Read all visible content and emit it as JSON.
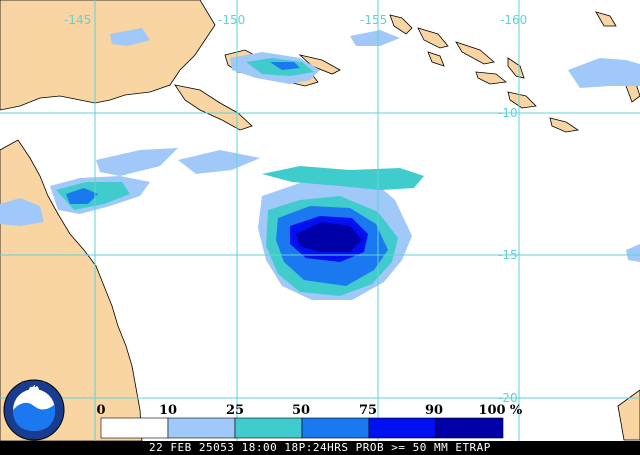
{
  "map": {
    "lon_labels": [
      "-145",
      "-150",
      "-155",
      "-160"
    ],
    "lat_labels": [
      "-10",
      "-15",
      "-20"
    ],
    "colors": {
      "land": "#f8d5a3",
      "ocean": "#ffffff",
      "grid": "#5fd3d3",
      "coast": "#000000"
    }
  },
  "legend": {
    "ticks": [
      "0",
      "10",
      "25",
      "50",
      "75",
      "90",
      "100"
    ],
    "unit": "%",
    "colors": [
      "#ffffff",
      "#a0c8f8",
      "#40cccc",
      "#1a78f0",
      "#0010f0",
      "#0000a8"
    ]
  },
  "logo": {
    "text": "NOAA"
  },
  "footer": {
    "caption": "22 FEB 25053 18:00 18P:24HRS PROB >= 50 MM ETRAP"
  }
}
